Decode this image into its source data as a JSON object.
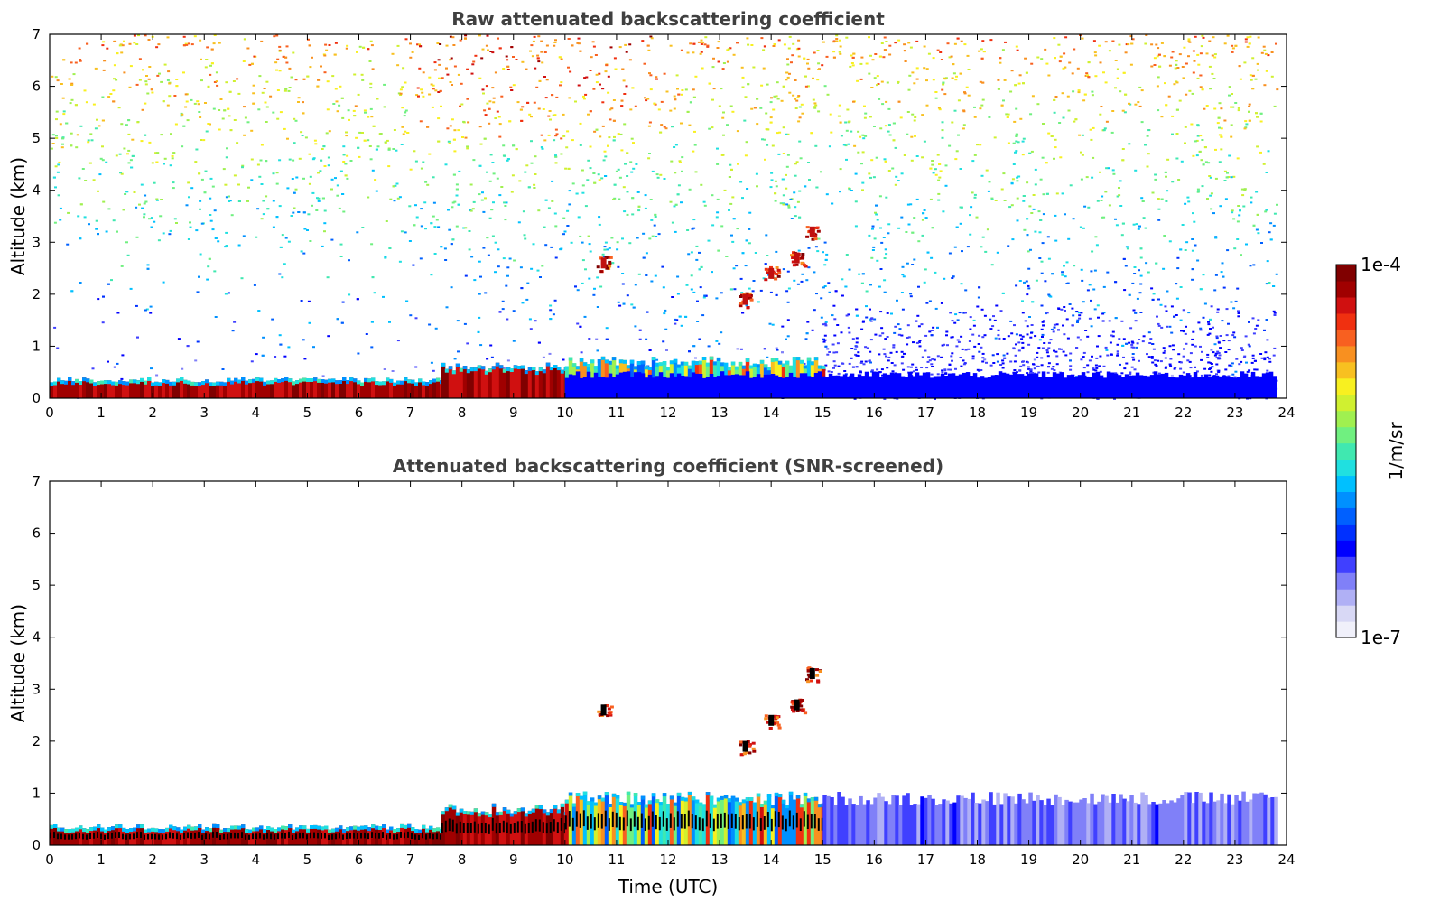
{
  "chart_data": [
    {
      "type": "heatmap",
      "title": "Raw attenuated backscattering coefficient",
      "xlabel": "",
      "ylabel": "Altitude (km)",
      "xlim": [
        0,
        24
      ],
      "ylim": [
        0,
        7
      ],
      "x_ticks": [
        "0",
        "1",
        "2",
        "3",
        "4",
        "5",
        "6",
        "7",
        "8",
        "9",
        "10",
        "11",
        "12",
        "13",
        "14",
        "15",
        "16",
        "17",
        "18",
        "19",
        "20",
        "21",
        "22",
        "23",
        "24"
      ],
      "y_ticks": [
        "0",
        "1",
        "2",
        "3",
        "4",
        "5",
        "6",
        "7"
      ],
      "noise": true,
      "boundary_layer": [
        {
          "t0": 0,
          "t1": 7.6,
          "top_km": 0.35,
          "value": "high"
        },
        {
          "t0": 7.6,
          "t1": 10,
          "top_km": 0.6,
          "value": "high"
        },
        {
          "t0": 10,
          "t1": 15,
          "top_km": 0.7,
          "value": "mixed"
        },
        {
          "t0": 10,
          "t1": 23.8,
          "top_km": 0.45,
          "value": "low"
        }
      ],
      "cloud_features": [
        {
          "time": 10.75,
          "alt_km": 2.6,
          "value": "high"
        },
        {
          "time": 13.5,
          "alt_km": 1.9,
          "value": "high"
        },
        {
          "time": 14.0,
          "alt_km": 2.4,
          "value": "high"
        },
        {
          "time": 14.5,
          "alt_km": 2.7,
          "value": "high"
        },
        {
          "time": 14.8,
          "alt_km": 3.2,
          "value": "high"
        }
      ]
    },
    {
      "type": "heatmap",
      "title": "Attenuated backscattering coefficient (SNR-screened)",
      "xlabel": "Time (UTC)",
      "ylabel": "Altitude (km)",
      "xlim": [
        0,
        24
      ],
      "ylim": [
        0,
        7
      ],
      "x_ticks": [
        "0",
        "1",
        "2",
        "3",
        "4",
        "5",
        "6",
        "7",
        "8",
        "9",
        "10",
        "11",
        "12",
        "13",
        "14",
        "15",
        "16",
        "17",
        "18",
        "19",
        "20",
        "21",
        "22",
        "23",
        "24"
      ],
      "y_ticks": [
        "0",
        "1",
        "2",
        "3",
        "4",
        "5",
        "6",
        "7"
      ],
      "noise": false,
      "boundary_layer": [
        {
          "t0": 0,
          "t1": 7.6,
          "top_km": 0.35,
          "value": "high"
        },
        {
          "t0": 7.6,
          "t1": 10,
          "top_km": 0.7,
          "value": "high"
        },
        {
          "t0": 10,
          "t1": 15,
          "top_km": 0.9,
          "value": "mixed"
        },
        {
          "t0": 15,
          "t1": 23.8,
          "top_km": 0.9,
          "value": "low"
        }
      ],
      "cloud_features": [
        {
          "time": 10.75,
          "alt_km": 2.6,
          "value": "high"
        },
        {
          "time": 13.5,
          "alt_km": 1.9,
          "value": "high"
        },
        {
          "time": 14.0,
          "alt_km": 2.4,
          "value": "high"
        },
        {
          "time": 14.5,
          "alt_km": 2.7,
          "value": "high"
        },
        {
          "time": 14.8,
          "alt_km": 3.3,
          "value": "high"
        }
      ]
    }
  ],
  "colorbar": {
    "label": "1/m/sr",
    "max_label": "1e-4",
    "min_label": "1e-7",
    "colors": [
      "#f0f0fa",
      "#d8d8f5",
      "#b0b0f5",
      "#8080f8",
      "#4040ff",
      "#0000ff",
      "#0030ff",
      "#0060ff",
      "#0090ff",
      "#00c0ff",
      "#20e0e0",
      "#40e8b0",
      "#70f080",
      "#a0f050",
      "#d0f030",
      "#f8f020",
      "#f8c020",
      "#f89020",
      "#f86020",
      "#f03010",
      "#d01010",
      "#a00000",
      "#800000"
    ]
  }
}
